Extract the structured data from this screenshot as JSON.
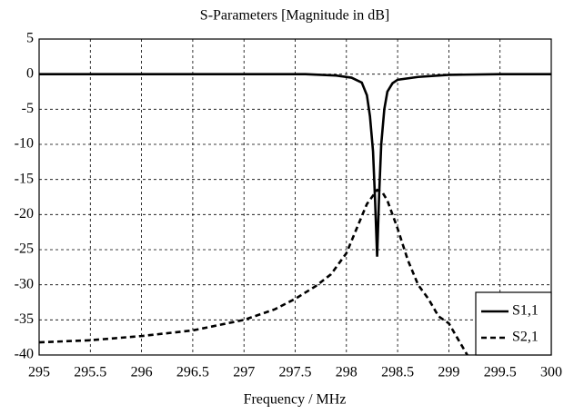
{
  "chart_data": {
    "type": "line",
    "title": "S-Parameters [Magnitude in dB]",
    "x_label": "Frequency / MHz",
    "xlim": [
      295,
      300
    ],
    "xticks": [
      295,
      295.5,
      296,
      296.5,
      297,
      297.5,
      298,
      298.5,
      299,
      299.5,
      300
    ],
    "ylim": [
      -40,
      5
    ],
    "yticks": [
      5,
      0,
      -5,
      -10,
      -15,
      -20,
      -25,
      -30,
      -35,
      -40
    ],
    "grid": true,
    "legend": "lower right",
    "series": [
      {
        "name": "S1,1",
        "color": "#000000",
        "line_style": "solid",
        "x": [
          295,
          296,
          297,
          297.6,
          297.9,
          298.05,
          298.15,
          298.2,
          298.23,
          298.26,
          298.28,
          298.3,
          298.32,
          298.34,
          298.37,
          298.4,
          298.45,
          298.5,
          298.7,
          299,
          299.5,
          300
        ],
        "values": [
          0,
          0,
          0,
          0,
          -0.2,
          -0.5,
          -1.2,
          -3,
          -6,
          -11,
          -18,
          -26,
          -17,
          -10,
          -5,
          -2.5,
          -1.3,
          -0.8,
          -0.4,
          -0.1,
          0,
          0
        ]
      },
      {
        "name": "S2,1",
        "color": "#000000",
        "line_style": "dashed",
        "x": [
          295,
          295.5,
          296,
          296.5,
          297,
          297.3,
          297.5,
          297.7,
          297.85,
          298,
          298.1,
          298.2,
          298.3,
          298.35,
          298.4,
          298.5,
          298.6,
          298.7,
          298.8,
          298.9,
          299,
          299.1,
          299.18
        ],
        "values": [
          -38.2,
          -37.9,
          -37.3,
          -36.5,
          -35,
          -33.5,
          -32,
          -30.2,
          -28.5,
          -25.5,
          -22,
          -18.5,
          -16.5,
          -16.8,
          -18,
          -22,
          -26.5,
          -30,
          -32,
          -34.5,
          -35.5,
          -38,
          -40
        ]
      }
    ]
  }
}
